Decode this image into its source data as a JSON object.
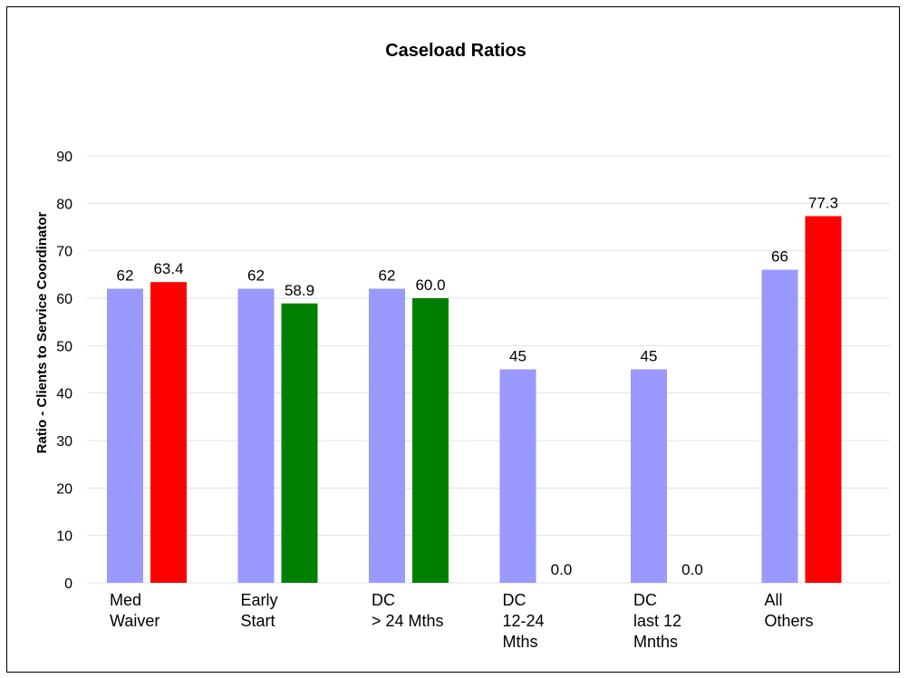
{
  "chart_data": {
    "type": "bar",
    "title": "Caseload Ratios",
    "xlabel": "",
    "ylabel": "Ratio - Clients to Service Coordinator",
    "ylim": [
      0,
      90
    ],
    "yticks": [
      0,
      10,
      20,
      30,
      40,
      50,
      60,
      70,
      80,
      90
    ],
    "grid": true,
    "legend": "none",
    "categories": [
      [
        "Med",
        "Waiver"
      ],
      [
        "Early",
        "Start"
      ],
      [
        "DC",
        "> 24 Mths"
      ],
      [
        "DC",
        "12-24",
        "Mths"
      ],
      [
        "DC",
        "last 12",
        "Mnths"
      ],
      [
        "All",
        "Others"
      ]
    ],
    "series": [
      {
        "values": [
          62,
          62,
          62,
          45,
          45,
          66
        ],
        "labels": [
          "62",
          "62",
          "62",
          "45",
          "45",
          "66"
        ],
        "colors": [
          "#9999ff",
          "#9999ff",
          "#9999ff",
          "#9999ff",
          "#9999ff",
          "#9999ff"
        ]
      },
      {
        "values": [
          63.4,
          58.9,
          60.0,
          0.0,
          0.0,
          77.3
        ],
        "labels": [
          "63.4",
          "58.9",
          "60.0",
          "0.0",
          "0.0",
          "77.3"
        ],
        "colors": [
          "#ff0000",
          "#008000",
          "#008000",
          "#ff0000",
          "#ff0000",
          "#ff0000"
        ]
      }
    ]
  }
}
